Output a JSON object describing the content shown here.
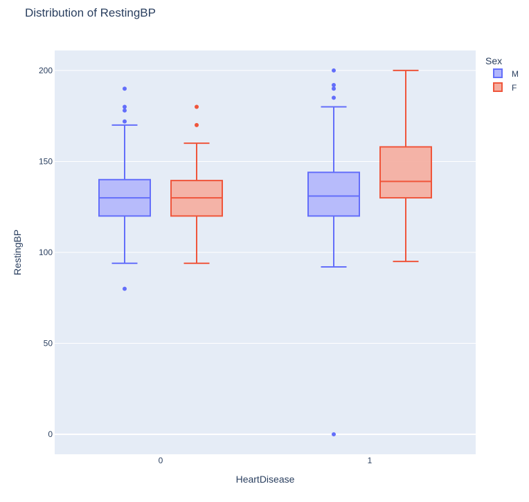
{
  "chart_data": {
    "type": "box",
    "title": "Distribution of RestingBP",
    "xlabel": "HeartDisease",
    "ylabel": "RestingBP",
    "categories": [
      "0",
      "1"
    ],
    "ylim": [
      -11,
      211
    ],
    "yticks": [
      0,
      50,
      100,
      150,
      200
    ],
    "grid": true,
    "plot_bg": "#e5ecf6",
    "legend": {
      "title": "Sex",
      "position": "top-right"
    },
    "series": [
      {
        "name": "M",
        "color": "#636efa",
        "fill": "#b1b6fc",
        "boxes": [
          {
            "category": "0",
            "lowerfence": 94,
            "q1": 120,
            "median": 130,
            "q3": 140,
            "upperfence": 170,
            "outliers": [
              172,
              178,
              180,
              190,
              80
            ]
          },
          {
            "category": "1",
            "lowerfence": 92,
            "q1": 120,
            "median": 131,
            "q3": 144,
            "upperfence": 180,
            "outliers": [
              185,
              190,
              192,
              200,
              0
            ]
          }
        ]
      },
      {
        "name": "F",
        "color": "#ef553b",
        "fill": "#f5ad9f",
        "boxes": [
          {
            "category": "0",
            "lowerfence": 94,
            "q1": 120,
            "median": 130,
            "q3": 139.5,
            "upperfence": 160,
            "outliers": [
              170,
              180
            ]
          },
          {
            "category": "1",
            "lowerfence": 95,
            "q1": 130,
            "median": 139,
            "q3": 158,
            "upperfence": 200,
            "outliers": []
          }
        ]
      }
    ]
  }
}
